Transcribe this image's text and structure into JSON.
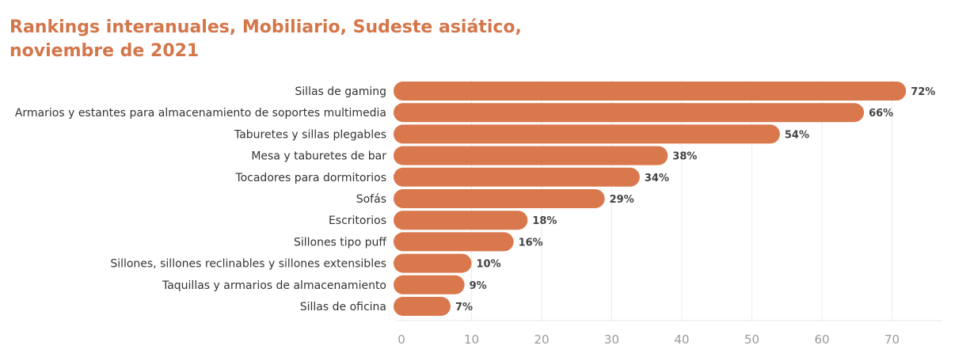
{
  "chart_data": {
    "type": "bar",
    "orientation": "horizontal",
    "title_lines": [
      "Rankings interanuales, Mobiliario, Sudeste asiático,",
      "noviembre de 2021"
    ],
    "categories": [
      "Sillas de gaming",
      "Armarios y estantes para almacenamiento de soportes multimedia",
      "Taburetes y sillas plegables",
      "Mesa y taburetes de bar",
      "Tocadores para dormitorios",
      "Sofás",
      "Escritorios",
      "Sillones tipo puff",
      "Sillones, sillones reclinables y sillones extensibles",
      "Taquillas y armarios de almacenamiento",
      "Sillas de oficina"
    ],
    "values": [
      72,
      66,
      54,
      38,
      34,
      29,
      18,
      16,
      10,
      9,
      7
    ],
    "value_labels": [
      "72%",
      "66%",
      "54%",
      "38%",
      "34%",
      "29%",
      "18%",
      "16%",
      "10%",
      "9%",
      "7%"
    ],
    "xticks": [
      "0",
      "10",
      "20",
      "30",
      "40",
      "50",
      "60",
      "70"
    ],
    "xlim": [
      0,
      77
    ],
    "xlabel": "",
    "ylabel": "",
    "grid": "vertical",
    "bar_color": "#d9784c",
    "title_color": "#d4764a"
  }
}
